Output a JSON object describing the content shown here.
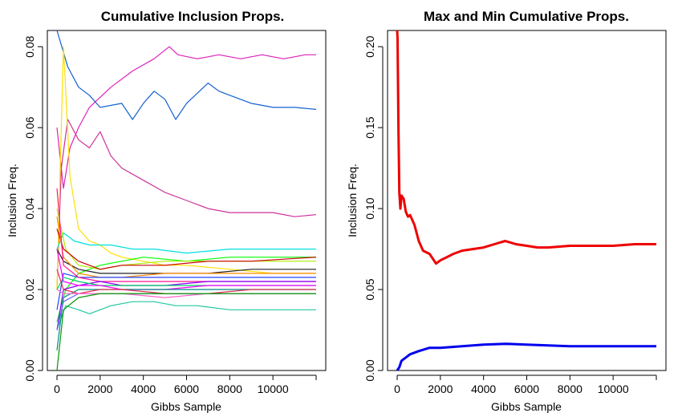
{
  "chart_data": [
    {
      "type": "line",
      "title": "Cumulative Inclusion Props.",
      "xlabel": "Gibbs Sample",
      "ylabel": "Inclusion Freq.",
      "xlim": [
        0,
        12000
      ],
      "ylim": [
        0,
        0.084
      ],
      "x_ticks": [
        "0",
        "2000",
        "4000",
        "6000",
        "8000",
        "10000"
      ],
      "y_ticks": [
        "0.00",
        "0.02",
        "0.04",
        "0.06",
        "0.08"
      ],
      "grid": false,
      "legend": "none",
      "series": [
        {
          "color": "#dd22bb",
          "x": [
            0,
            300,
            600,
            1000,
            1500,
            2500,
            3500,
            4500,
            5200,
            5600,
            6500,
            7500,
            8500,
            9500,
            10500,
            11500,
            12000
          ],
          "y": [
            0.06,
            0.045,
            0.055,
            0.06,
            0.065,
            0.07,
            0.074,
            0.077,
            0.08,
            0.078,
            0.077,
            0.078,
            0.077,
            0.078,
            0.077,
            0.078,
            0.078
          ]
        },
        {
          "color": "#1060d0",
          "x": [
            0,
            500,
            1000,
            1500,
            2000,
            3000,
            3500,
            4000,
            4500,
            5000,
            5500,
            6000,
            7000,
            7500,
            8000,
            9000,
            10000,
            11000,
            12000
          ],
          "y": [
            0.084,
            0.075,
            0.07,
            0.068,
            0.065,
            0.066,
            0.062,
            0.066,
            0.069,
            0.067,
            0.062,
            0.066,
            0.071,
            0.069,
            0.068,
            0.066,
            0.065,
            0.065,
            0.0645
          ]
        },
        {
          "color": "#cc3399",
          "x": [
            0,
            200,
            500,
            1000,
            1500,
            2000,
            2500,
            3000,
            4000,
            5000,
            6000,
            7000,
            8000,
            9000,
            10000,
            11000,
            12000
          ],
          "y": [
            0.02,
            0.05,
            0.062,
            0.057,
            0.055,
            0.059,
            0.053,
            0.05,
            0.047,
            0.044,
            0.042,
            0.04,
            0.039,
            0.039,
            0.039,
            0.038,
            0.0385
          ]
        },
        {
          "color": "#ffe000",
          "x": [
            0,
            300,
            600,
            1000,
            1500,
            2000,
            2500,
            3000,
            4000,
            5000,
            6000,
            8000,
            10000,
            12000
          ],
          "y": [
            0.02,
            0.08,
            0.048,
            0.035,
            0.032,
            0.031,
            0.029,
            0.028,
            0.027,
            0.026,
            0.026,
            0.025,
            0.024,
            0.024
          ]
        },
        {
          "color": "#00e0e0",
          "x": [
            0,
            300,
            800,
            1500,
            2500,
            3500,
            4500,
            6000,
            8000,
            10000,
            12000
          ],
          "y": [
            0.03,
            0.034,
            0.032,
            0.031,
            0.031,
            0.03,
            0.03,
            0.029,
            0.03,
            0.03,
            0.03
          ]
        },
        {
          "color": "#20c8a0",
          "x": [
            0,
            400,
            1000,
            1500,
            2000,
            2500,
            3500,
            4500,
            5500,
            6500,
            8000,
            10000,
            12000
          ],
          "y": [
            0.01,
            0.016,
            0.015,
            0.014,
            0.015,
            0.016,
            0.017,
            0.017,
            0.016,
            0.016,
            0.015,
            0.015,
            0.015
          ]
        },
        {
          "color": "#00ff00",
          "x": [
            0,
            400,
            1000,
            2000,
            3000,
            4000,
            6000,
            8000,
            10000,
            12000
          ],
          "y": [
            0.012,
            0.02,
            0.024,
            0.026,
            0.027,
            0.028,
            0.027,
            0.028,
            0.028,
            0.028
          ]
        },
        {
          "color": "#aaee00",
          "x": [
            0,
            400,
            1000,
            2000,
            3000,
            5000,
            7000,
            9000,
            12000
          ],
          "y": [
            0.04,
            0.03,
            0.026,
            0.025,
            0.026,
            0.027,
            0.027,
            0.027,
            0.027
          ]
        },
        {
          "color": "#cc0000",
          "x": [
            0,
            300,
            1000,
            2000,
            3000,
            5000,
            7000,
            9000,
            12000
          ],
          "y": [
            0.035,
            0.03,
            0.027,
            0.025,
            0.026,
            0.026,
            0.027,
            0.027,
            0.028
          ]
        },
        {
          "color": "#202020",
          "x": [
            0,
            300,
            1000,
            2000,
            3000,
            5000,
            7000,
            9000,
            12000
          ],
          "y": [
            0.03,
            0.027,
            0.025,
            0.024,
            0.024,
            0.024,
            0.024,
            0.025,
            0.025
          ]
        },
        {
          "color": "#ff8800",
          "x": [
            0,
            300,
            1000,
            2000,
            3000,
            5000,
            7000,
            9000,
            12000
          ],
          "y": [
            0.038,
            0.028,
            0.024,
            0.023,
            0.023,
            0.024,
            0.024,
            0.024,
            0.024
          ]
        },
        {
          "color": "#2244ff",
          "x": [
            0,
            300,
            1000,
            2000,
            3000,
            5000,
            7000,
            9000,
            12000
          ],
          "y": [
            0.015,
            0.024,
            0.023,
            0.023,
            0.023,
            0.023,
            0.023,
            0.023,
            0.023
          ]
        },
        {
          "color": "#ff1493",
          "x": [
            0,
            300,
            1000,
            2000,
            3000,
            5000,
            7000,
            9000,
            12000
          ],
          "y": [
            0.045,
            0.026,
            0.023,
            0.022,
            0.022,
            0.022,
            0.022,
            0.022,
            0.022
          ]
        },
        {
          "color": "#8800ff",
          "x": [
            0,
            300,
            1000,
            2000,
            3000,
            5000,
            7000,
            9000,
            12000
          ],
          "y": [
            0.01,
            0.02,
            0.021,
            0.022,
            0.021,
            0.021,
            0.022,
            0.022,
            0.022
          ]
        },
        {
          "color": "#00cc66",
          "x": [
            0,
            300,
            1000,
            2000,
            3000,
            5000,
            7000,
            9000,
            12000
          ],
          "y": [
            0.02,
            0.023,
            0.022,
            0.021,
            0.021,
            0.021,
            0.021,
            0.021,
            0.021
          ]
        },
        {
          "color": "#ff00ff",
          "x": [
            0,
            300,
            1000,
            2000,
            3000,
            5000,
            7000,
            9000,
            12000
          ],
          "y": [
            0.03,
            0.022,
            0.021,
            0.021,
            0.02,
            0.02,
            0.021,
            0.021,
            0.021
          ]
        },
        {
          "color": "#008888",
          "x": [
            0,
            300,
            1000,
            2000,
            3000,
            5000,
            7000,
            9000,
            12000
          ],
          "y": [
            0.005,
            0.018,
            0.02,
            0.02,
            0.02,
            0.02,
            0.02,
            0.02,
            0.02
          ]
        },
        {
          "color": "#e03050",
          "x": [
            0,
            300,
            1000,
            2000,
            3000,
            5000,
            7000,
            9000,
            12000
          ],
          "y": [
            0.025,
            0.02,
            0.019,
            0.02,
            0.02,
            0.019,
            0.019,
            0.02,
            0.02
          ]
        },
        {
          "color": "#6666ff",
          "x": [
            0,
            300,
            1000,
            2000,
            3000,
            5000,
            7000,
            9000,
            12000
          ],
          "y": [
            0.01,
            0.017,
            0.019,
            0.019,
            0.019,
            0.019,
            0.019,
            0.019,
            0.019
          ]
        },
        {
          "color": "#ff66cc",
          "x": [
            0,
            300,
            1000,
            2000,
            3000,
            5000,
            7000,
            9000,
            12000
          ],
          "y": [
            0.02,
            0.019,
            0.019,
            0.019,
            0.019,
            0.018,
            0.019,
            0.019,
            0.019
          ]
        },
        {
          "color": "#009900",
          "x": [
            0,
            300,
            1000,
            2000,
            3000,
            5000,
            7000,
            9000,
            12000
          ],
          "y": [
            0.0,
            0.015,
            0.018,
            0.019,
            0.019,
            0.019,
            0.019,
            0.019,
            0.019
          ]
        }
      ]
    },
    {
      "type": "line",
      "title": "Max and Min Cumulative Props.",
      "xlabel": "Gibbs Sample",
      "ylabel": "Inclusion Freq.",
      "xlim": [
        0,
        12000
      ],
      "ylim": [
        0,
        0.21
      ],
      "x_ticks": [
        "0",
        "2000",
        "4000",
        "6000",
        "8000",
        "10000"
      ],
      "y_ticks": [
        "0.00",
        "0.05",
        "0.10",
        "0.15",
        "0.20"
      ],
      "grid": false,
      "legend": "none",
      "series": [
        {
          "color": "#ee0000",
          "x": [
            0,
            20,
            60,
            100,
            150,
            200,
            300,
            400,
            500,
            600,
            800,
            1000,
            1200,
            1500,
            1800,
            2000,
            2300,
            2600,
            3000,
            3500,
            4000,
            4500,
            5000,
            5500,
            6000,
            6500,
            7000,
            8000,
            9000,
            10000,
            11000,
            12000
          ],
          "y": [
            0.21,
            0.205,
            0.15,
            0.11,
            0.1,
            0.108,
            0.106,
            0.098,
            0.095,
            0.096,
            0.09,
            0.08,
            0.074,
            0.072,
            0.066,
            0.068,
            0.07,
            0.072,
            0.074,
            0.075,
            0.076,
            0.078,
            0.08,
            0.078,
            0.077,
            0.076,
            0.076,
            0.077,
            0.077,
            0.077,
            0.078,
            0.078
          ]
        },
        {
          "color": "#0000ee",
          "x": [
            0,
            100,
            200,
            400,
            600,
            800,
            1000,
            1500,
            2000,
            3000,
            4000,
            5000,
            6000,
            7000,
            8000,
            9000,
            10000,
            11000,
            12000
          ],
          "y": [
            0.0,
            0.002,
            0.006,
            0.008,
            0.01,
            0.011,
            0.012,
            0.014,
            0.014,
            0.015,
            0.016,
            0.0165,
            0.016,
            0.0155,
            0.015,
            0.015,
            0.015,
            0.015,
            0.015
          ]
        }
      ]
    }
  ]
}
